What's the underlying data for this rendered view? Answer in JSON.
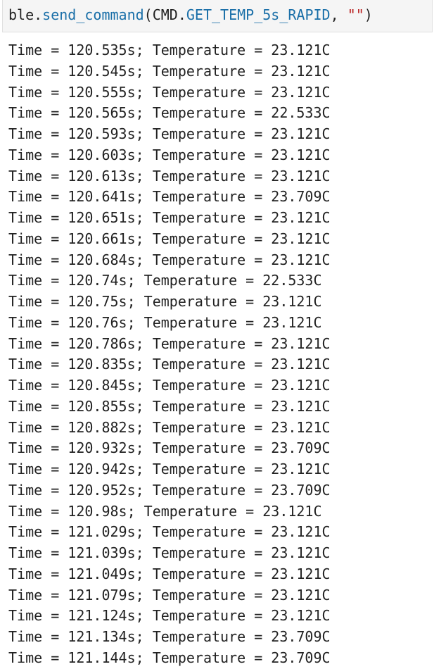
{
  "code_cell": {
    "object": "ble",
    "dot": ".",
    "method": "send_command",
    "open_paren": "(",
    "constant_prefix": "CMD.",
    "constant": "GET_TEMP_5s_RAPID",
    "separator": ", ",
    "string_arg": "\"\"",
    "close_paren": ")"
  },
  "output_lines": [
    "Time = 120.535s; Temperature = 23.121C",
    "Time = 120.545s; Temperature = 23.121C",
    "Time = 120.555s; Temperature = 23.121C",
    "Time = 120.565s; Temperature = 22.533C",
    "Time = 120.593s; Temperature = 23.121C",
    "Time = 120.603s; Temperature = 23.121C",
    "Time = 120.613s; Temperature = 23.121C",
    "Time = 120.641s; Temperature = 23.709C",
    "Time = 120.651s; Temperature = 23.121C",
    "Time = 120.661s; Temperature = 23.121C",
    "Time = 120.684s; Temperature = 23.121C",
    "Time = 120.74s; Temperature = 22.533C",
    "Time = 120.75s; Temperature = 23.121C",
    "Time = 120.76s; Temperature = 23.121C",
    "Time = 120.786s; Temperature = 23.121C",
    "Time = 120.835s; Temperature = 23.121C",
    "Time = 120.845s; Temperature = 23.121C",
    "Time = 120.855s; Temperature = 23.121C",
    "Time = 120.882s; Temperature = 23.121C",
    "Time = 120.932s; Temperature = 23.709C",
    "Time = 120.942s; Temperature = 23.121C",
    "Time = 120.952s; Temperature = 23.709C",
    "Time = 120.98s; Temperature = 23.121C",
    "Time = 121.029s; Temperature = 23.121C",
    "Time = 121.039s; Temperature = 23.121C",
    "Time = 121.049s; Temperature = 23.121C",
    "Time = 121.079s; Temperature = 23.121C",
    "Time = 121.124s; Temperature = 23.121C",
    "Time = 121.134s; Temperature = 23.709C",
    "Time = 121.144s; Temperature = 23.709C"
  ]
}
